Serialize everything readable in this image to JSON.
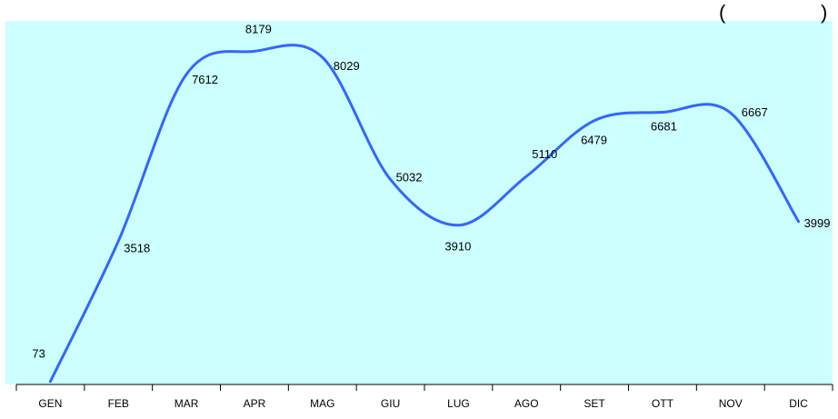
{
  "header": {
    "visible_title_fragment": "(",
    "visible_title_fragment_right": ")"
  },
  "chart_data": {
    "type": "line",
    "categories": [
      "GEN",
      "FEB",
      "MAR",
      "APR",
      "MAG",
      "GIU",
      "LUG",
      "AGO",
      "SET",
      "OTT",
      "NOV",
      "DIC"
    ],
    "series": [
      {
        "values": [
          73,
          3518,
          7612,
          8179,
          8029,
          5032,
          3910,
          5110,
          6479,
          6681,
          6667,
          3999
        ],
        "color": "#3366ff"
      }
    ],
    "ylim": [
      0,
      8500
    ],
    "grid": false,
    "legend": "none",
    "smooth": true,
    "plot_background": "#ccffff"
  }
}
